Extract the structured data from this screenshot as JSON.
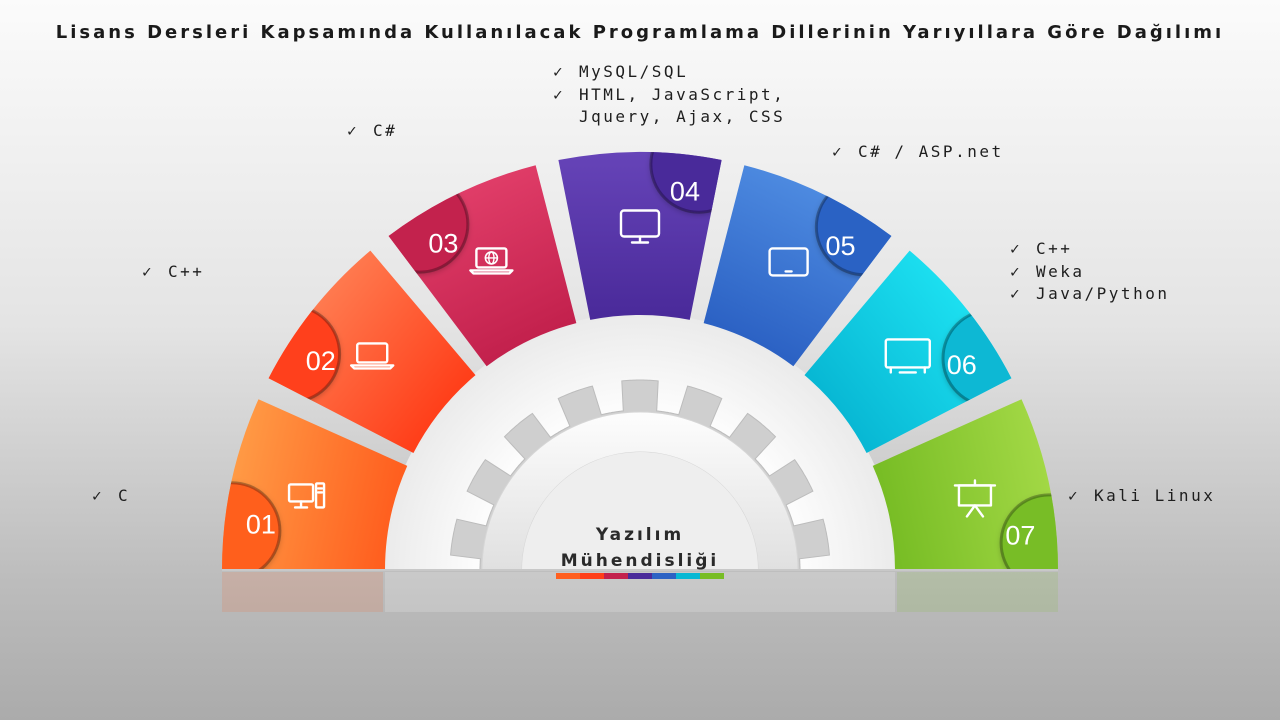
{
  "title": "Lisans Dersleri Kapsamında Kullanılacak Programlama Dillerinin Yarıyıllara Göre Dağılımı",
  "center": {
    "line1": "Yazılım",
    "line2": "Mühendisliği"
  },
  "check_mark": "✓",
  "segments": [
    {
      "number": "01",
      "color_from": "#ff9a45",
      "color_to": "#ff5f1f",
      "icon": "desktop-computer-icon"
    },
    {
      "number": "02",
      "color_from": "#ff7a4f",
      "color_to": "#ff3f1a",
      "icon": "laptop-icon"
    },
    {
      "number": "03",
      "color_from": "#e03d68",
      "color_to": "#c3214d",
      "icon": "laptop-globe-icon"
    },
    {
      "number": "04",
      "color_from": "#6644b8",
      "color_to": "#4a2a9a",
      "icon": "monitor-icon"
    },
    {
      "number": "05",
      "color_from": "#4d8ae0",
      "color_to": "#2c62c4",
      "icon": "tablet-icon"
    },
    {
      "number": "06",
      "color_from": "#1cdff0",
      "color_to": "#08b8d4",
      "icon": "tv-monitor-icon"
    },
    {
      "number": "07",
      "color_from": "#a2d845",
      "color_to": "#78bd25",
      "icon": "presentation-board-icon"
    }
  ],
  "labels": [
    {
      "items": [
        "C"
      ]
    },
    {
      "items": [
        "C++"
      ]
    },
    {
      "items": [
        "C#"
      ]
    },
    {
      "items": [
        "MySQL/SQL",
        "HTML, JavaScript,",
        "Jquery, Ajax, CSS"
      ],
      "checks": [
        true,
        true,
        false
      ]
    },
    {
      "items": [
        "C# / ASP.net"
      ]
    },
    {
      "items": [
        "C++",
        "Weka",
        "Java/Python"
      ]
    },
    {
      "items": [
        "Kali Linux"
      ]
    }
  ]
}
